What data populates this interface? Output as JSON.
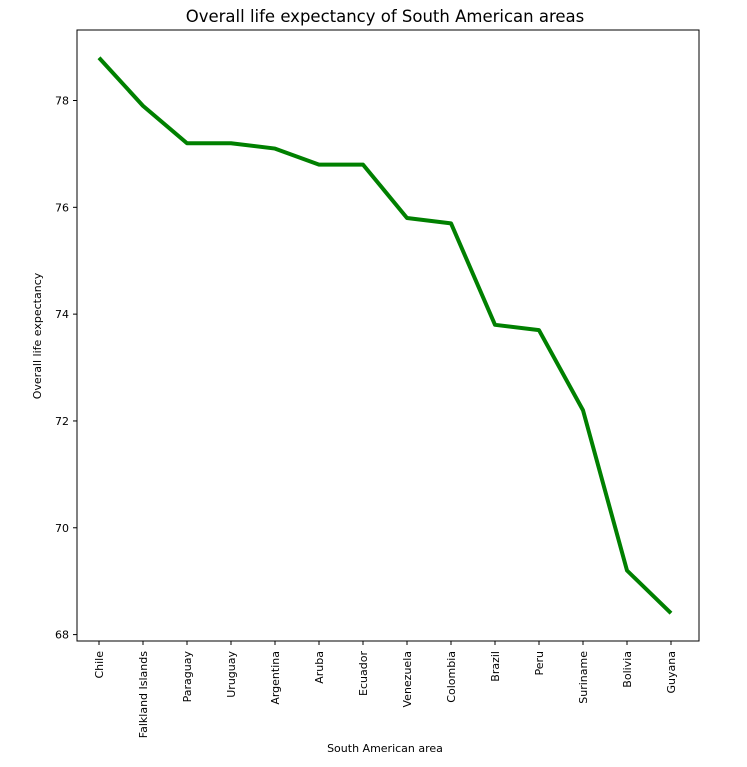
{
  "chart_data": {
    "type": "line",
    "title": "Overall life expectancy of South American areas",
    "xlabel": "South American area",
    "ylabel": "Overall life expectancy",
    "categories": [
      "Chile",
      "Falkland Islands",
      "Paraguay",
      "Uruguay",
      "Argentina",
      "Aruba",
      "Ecuador",
      "Venezuela",
      "Colombia",
      "Brazil",
      "Peru",
      "Suriname",
      "Bolivia",
      "Guyana"
    ],
    "series": [
      {
        "color": "#008000",
        "values": [
          78.8,
          77.9,
          77.2,
          77.2,
          77.1,
          76.8,
          76.8,
          75.8,
          75.7,
          73.8,
          73.7,
          72.2,
          69.2,
          68.4
        ]
      }
    ],
    "yticks": [
      "68",
      "70",
      "72",
      "74",
      "76",
      "78"
    ],
    "ylim": [
      67.88,
      79.32
    ],
    "grid": false,
    "legend": "none"
  }
}
